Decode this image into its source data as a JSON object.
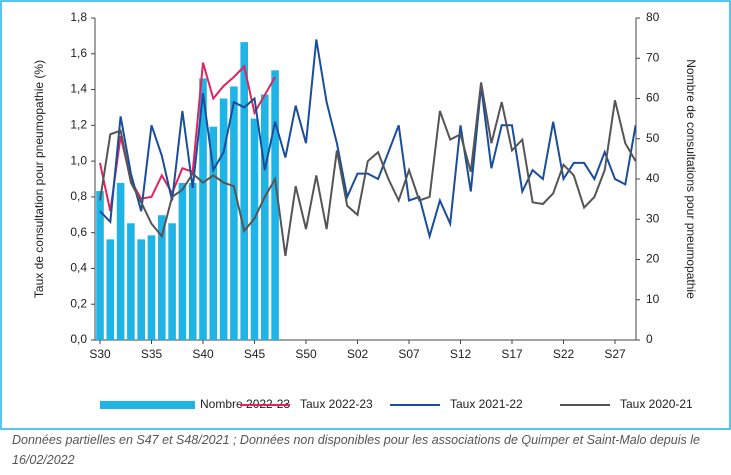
{
  "chart_data": {
    "type": "combo",
    "ylabel": "Taux de consultation pour pneumopathie (%)",
    "y2label": "Nombre de consultations pour pneumopathie",
    "note": "Données partielles en S47 et S48/2021 ; Données non disponibles pour les associations de Quimper et Saint-Malo depuis le 16/02/2022",
    "categories": [
      "S30",
      null,
      null,
      null,
      null,
      "S35",
      null,
      null,
      null,
      null,
      "S40",
      null,
      null,
      null,
      null,
      "S45",
      null,
      null,
      null,
      null,
      "S50",
      null,
      null,
      null,
      null,
      "S02",
      null,
      null,
      null,
      null,
      "S07",
      null,
      null,
      null,
      null,
      "S12",
      null,
      null,
      null,
      null,
      "S17",
      null,
      null,
      null,
      null,
      "S22",
      null,
      null,
      null,
      null,
      "S27",
      null,
      null
    ],
    "ylim": [
      0,
      1.8
    ],
    "yticks": [
      {
        "value": 0,
        "label": "0,0"
      },
      {
        "value": 0.2,
        "label": "0,2"
      },
      {
        "value": 0.4,
        "label": "0,4"
      },
      {
        "value": 0.6,
        "label": "0,6"
      },
      {
        "value": 0.8,
        "label": "0,8"
      },
      {
        "value": 1.0,
        "label": "1,0"
      },
      {
        "value": 1.2,
        "label": "1,2"
      },
      {
        "value": 1.4,
        "label": "1,4"
      },
      {
        "value": 1.6,
        "label": "1,6"
      },
      {
        "value": 1.8,
        "label": "1,8"
      }
    ],
    "y2lim": [
      0,
      80
    ],
    "y2ticks": [
      0,
      10,
      20,
      30,
      40,
      50,
      60,
      70,
      80
    ],
    "series": [
      {
        "name": "Nombre 2022-23",
        "type": "bar",
        "axis": "y2",
        "color": "#1eb4e6",
        "values": [
          37,
          25,
          39,
          29,
          25,
          26,
          31,
          29,
          39,
          39,
          65,
          53,
          60,
          63,
          74,
          55,
          61,
          67,
          null,
          null,
          null,
          null,
          null,
          null,
          null,
          null,
          null,
          null,
          null,
          null,
          null,
          null,
          null,
          null,
          null,
          null,
          null,
          null,
          null,
          null,
          null,
          null,
          null,
          null,
          null,
          null,
          null,
          null,
          null,
          null,
          null,
          null,
          null
        ]
      },
      {
        "name": "Taux 2022-23",
        "type": "line",
        "color": "#e0245e",
        "values": [
          0.99,
          0.72,
          1.14,
          0.89,
          0.79,
          0.8,
          0.92,
          0.82,
          0.96,
          0.94,
          1.55,
          1.35,
          1.42,
          1.47,
          1.53,
          1.27,
          1.37,
          1.47,
          null,
          null,
          null,
          null,
          null,
          null,
          null,
          null,
          null,
          null,
          null,
          null,
          null,
          null,
          null,
          null,
          null,
          null,
          null,
          null,
          null,
          null,
          null,
          null,
          null,
          null,
          null,
          null,
          null,
          null,
          null,
          null,
          null,
          null,
          null
        ]
      },
      {
        "name": "Taux 2021-22",
        "type": "line",
        "color": "#1a4d9c",
        "values": [
          0.72,
          0.66,
          1.25,
          0.93,
          0.72,
          1.2,
          1.03,
          0.78,
          1.28,
          0.85,
          1.38,
          0.95,
          1.05,
          1.33,
          1.3,
          1.35,
          0.95,
          1.22,
          1.02,
          1.31,
          1.1,
          1.68,
          1.33,
          1.1,
          0.8,
          0.93,
          0.93,
          0.9,
          1.05,
          1.2,
          0.78,
          0.8,
          0.58,
          0.78,
          0.65,
          1.2,
          0.83,
          1.42,
          0.96,
          1.2,
          1.2,
          0.83,
          0.95,
          0.9,
          1.22,
          0.9,
          0.99,
          0.99,
          0.9,
          1.05,
          0.9,
          0.87,
          1.2
        ]
      },
      {
        "name": "Taux 2020-21",
        "type": "line",
        "color": "#555555",
        "values": [
          0.78,
          1.15,
          1.17,
          0.88,
          0.77,
          0.65,
          0.58,
          0.8,
          0.84,
          0.93,
          0.88,
          0.92,
          0.88,
          0.86,
          0.61,
          0.68,
          0.8,
          0.9,
          0.47,
          0.86,
          0.62,
          0.92,
          0.62,
          1.06,
          0.75,
          0.7,
          1.0,
          1.05,
          0.9,
          0.78,
          0.95,
          0.78,
          0.8,
          1.28,
          1.12,
          1.15,
          0.94,
          1.44,
          1.1,
          1.33,
          1.06,
          1.12,
          0.77,
          0.76,
          0.82,
          0.98,
          0.92,
          0.74,
          0.8,
          0.95,
          1.34,
          1.1,
          1.0
        ]
      }
    ]
  }
}
